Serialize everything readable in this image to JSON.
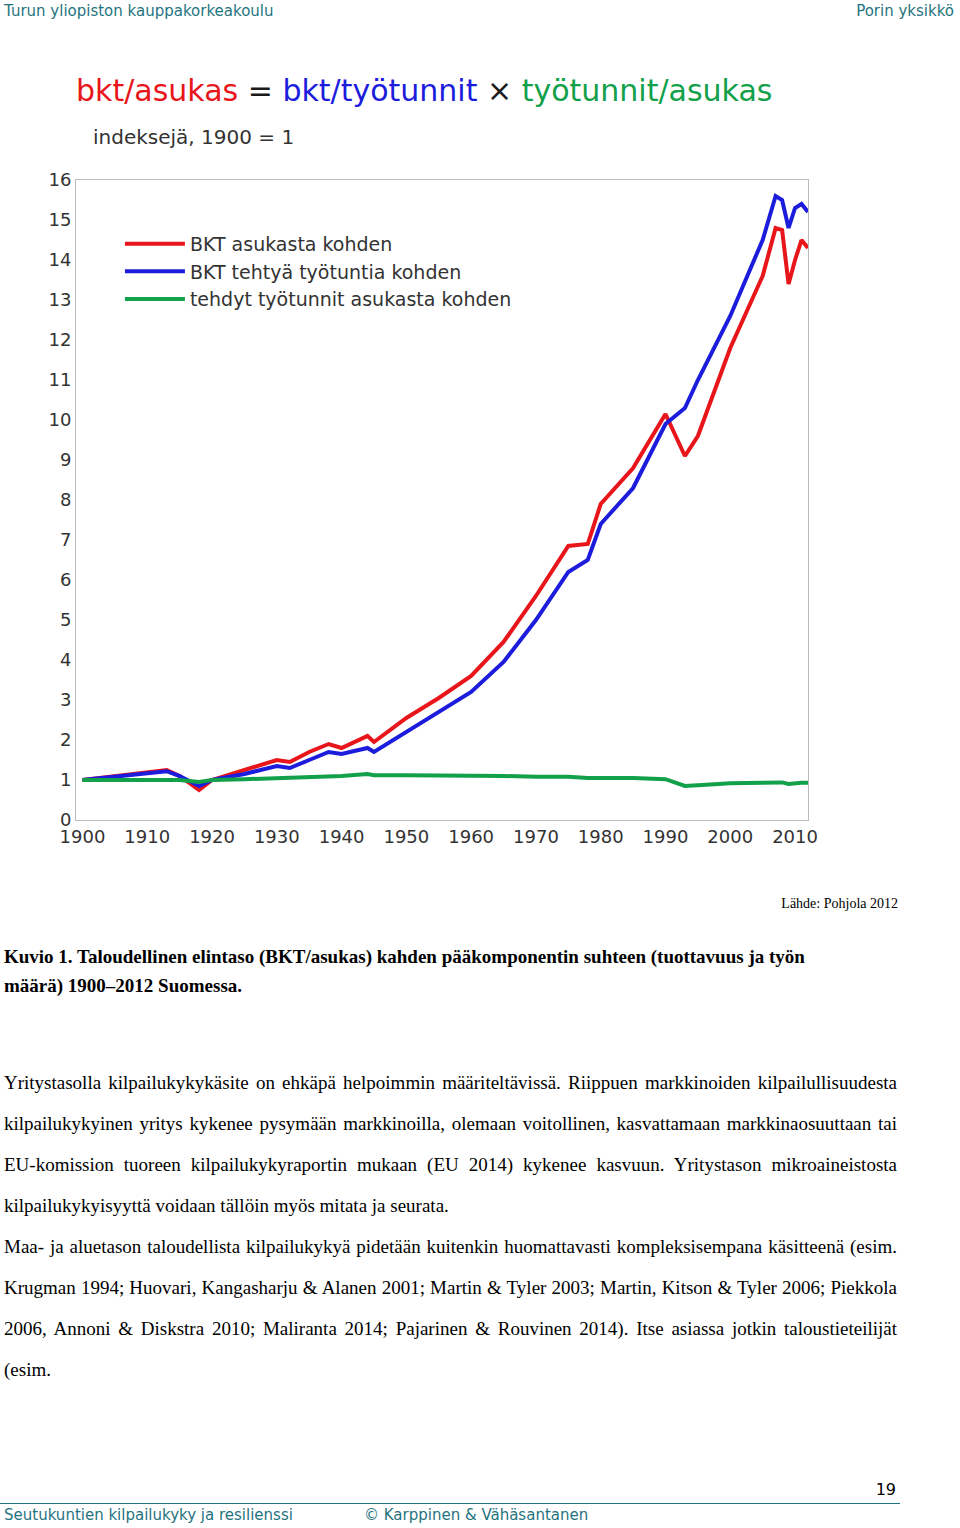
{
  "header": {
    "left": "Turun yliopiston kauppakorkeakoulu",
    "right": "Porin yksikkö"
  },
  "chart_data": {
    "type": "line",
    "title": [
      {
        "text": "bkt/asukas",
        "color": "#e8151b"
      },
      {
        "text": " = ",
        "color": "#1a1a1a"
      },
      {
        "text": "bkt/työtunnit",
        "color": "#1c1cdc"
      },
      {
        "text": " × ",
        "color": "#1a1a1a"
      },
      {
        "text": "työtunnit/asukas",
        "color": "#12a04a"
      }
    ],
    "subtitle": "indeksejä, 1900 = 1",
    "x": [
      1900,
      1905,
      1910,
      1913,
      1915,
      1918,
      1920,
      1925,
      1930,
      1932,
      1935,
      1938,
      1940,
      1944,
      1945,
      1950,
      1955,
      1960,
      1965,
      1970,
      1975,
      1978,
      1980,
      1985,
      1990,
      1993,
      1995,
      2000,
      2005,
      2007,
      2008,
      2009,
      2010,
      2011,
      2012
    ],
    "series": [
      {
        "name": "BKT asukasta kohden",
        "color": "#e8151b",
        "line_style": "solid",
        "values": [
          1.0,
          1.1,
          1.2,
          1.25,
          1.1,
          0.75,
          1.0,
          1.25,
          1.5,
          1.45,
          1.7,
          1.9,
          1.8,
          2.1,
          1.95,
          2.55,
          3.05,
          3.6,
          4.45,
          5.6,
          6.85,
          6.9,
          7.9,
          8.8,
          10.15,
          9.1,
          9.6,
          11.8,
          13.6,
          14.8,
          14.75,
          13.4,
          14.0,
          14.5,
          14.3
        ]
      },
      {
        "name": "BKT tehtyä työtuntia kohden",
        "color": "#1c1cdc",
        "line_style": "solid",
        "values": [
          1.0,
          1.08,
          1.15,
          1.22,
          1.1,
          0.85,
          1.0,
          1.15,
          1.35,
          1.3,
          1.5,
          1.7,
          1.65,
          1.8,
          1.7,
          2.2,
          2.7,
          3.2,
          3.95,
          5.0,
          6.2,
          6.5,
          7.4,
          8.3,
          9.9,
          10.3,
          11.0,
          12.6,
          14.5,
          15.6,
          15.5,
          14.8,
          15.3,
          15.4,
          15.2
        ]
      },
      {
        "name": "tehdyt työtunnit asukasta kohden",
        "color": "#12a04a",
        "line_style": "solid",
        "values": [
          1.0,
          1.0,
          1.0,
          1.02,
          1.0,
          0.95,
          1.0,
          1.02,
          1.05,
          1.05,
          1.08,
          1.1,
          1.1,
          1.15,
          1.12,
          1.12,
          1.12,
          1.1,
          1.1,
          1.08,
          1.08,
          1.05,
          1.05,
          1.05,
          1.02,
          0.85,
          0.87,
          0.92,
          0.93,
          0.93,
          0.94,
          0.9,
          0.92,
          0.93,
          0.93
        ]
      }
    ],
    "xlim": [
      1899,
      2012
    ],
    "xticks": [
      1900,
      1910,
      1920,
      1930,
      1940,
      1950,
      1960,
      1970,
      1980,
      1990,
      2000,
      2010
    ],
    "ylim": [
      0,
      16
    ],
    "yticks": [
      0,
      1,
      2,
      3,
      4,
      5,
      6,
      7,
      8,
      9,
      10,
      11,
      12,
      13,
      14,
      15,
      16
    ],
    "grid": false,
    "legend": "upper left"
  },
  "source": "Lähde: Pohjola 2012",
  "caption": "Kuvio 1. Taloudellinen elintaso (BKT/asukas) kahden pääkomponentin suhteen (tuottavuus ja työn määrä) 1900–2012 Suomessa.",
  "paragraphs": [
    "Yritystasolla kilpailukykykäsite on ehkäpä helpoimmin määriteltävissä. Riippuen markkinoiden kilpailullisuudesta kilpailukykyinen yritys kykenee pysymään markkinoilla, olemaan voitollinen, kasvattamaan markkinaosuuttaan tai EU-komission tuoreen kilpailukykyraportin mukaan (EU 2014) kykenee kasvuun. Yritystason mikroaineistosta kilpailukykyisyyttä voidaan tällöin myös mitata ja seurata.",
    "Maa- ja aluetason taloudellista kilpailukykyä pidetään kuitenkin huomattavasti kompleksisempana käsitteenä (esim. Krugman 1994; Huovari, Kangasharju & Alanen 2001; Martin & Tyler 2003; Martin, Kitson & Tyler 2006; Piekkola 2006, Annoni & Diskstra 2010; Maliranta 2014; Pajarinen & Rouvinen 2014). Itse asiassa jotkin taloustieteilijät (esim."
  ],
  "footer": {
    "page": 19,
    "left": "Seutukuntien kilpailukyky ja resilienssi",
    "middle": "© Karppinen & Vähäsantanen"
  }
}
